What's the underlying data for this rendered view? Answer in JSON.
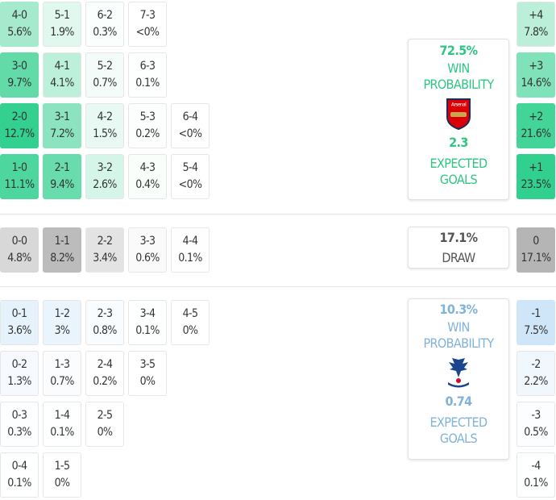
{
  "colors": {
    "home": "#2ecf8c",
    "draw": "#b5b5b5",
    "away": "#b9daf4"
  },
  "home_grid": [
    [
      {
        "score": "4-0",
        "pct": "5.6%"
      },
      {
        "score": "5-1",
        "pct": "1.9%"
      },
      {
        "score": "6-2",
        "pct": "0.3%"
      },
      {
        "score": "7-3",
        "pct": "<0%"
      }
    ],
    [
      {
        "score": "3-0",
        "pct": "9.7%"
      },
      {
        "score": "4-1",
        "pct": "4.1%"
      },
      {
        "score": "5-2",
        "pct": "0.7%"
      },
      {
        "score": "6-3",
        "pct": "0.1%"
      }
    ],
    [
      {
        "score": "2-0",
        "pct": "12.7%"
      },
      {
        "score": "3-1",
        "pct": "7.2%"
      },
      {
        "score": "4-2",
        "pct": "1.5%"
      },
      {
        "score": "5-3",
        "pct": "0.2%"
      },
      {
        "score": "6-4",
        "pct": "<0%"
      }
    ],
    [
      {
        "score": "1-0",
        "pct": "11.1%"
      },
      {
        "score": "2-1",
        "pct": "9.4%"
      },
      {
        "score": "3-2",
        "pct": "2.6%"
      },
      {
        "score": "4-3",
        "pct": "0.4%"
      },
      {
        "score": "5-4",
        "pct": "<0%"
      }
    ]
  ],
  "draw_grid": [
    [
      {
        "score": "0-0",
        "pct": "4.8%"
      },
      {
        "score": "1-1",
        "pct": "8.2%"
      },
      {
        "score": "2-2",
        "pct": "3.4%"
      },
      {
        "score": "3-3",
        "pct": "0.6%"
      },
      {
        "score": "4-4",
        "pct": "0.1%"
      }
    ]
  ],
  "away_grid": [
    [
      {
        "score": "0-1",
        "pct": "3.6%"
      },
      {
        "score": "1-2",
        "pct": "3%"
      },
      {
        "score": "2-3",
        "pct": "0.8%"
      },
      {
        "score": "3-4",
        "pct": "0.1%"
      },
      {
        "score": "4-5",
        "pct": "0%"
      }
    ],
    [
      {
        "score": "0-2",
        "pct": "1.3%"
      },
      {
        "score": "1-3",
        "pct": "0.7%"
      },
      {
        "score": "2-4",
        "pct": "0.2%"
      },
      {
        "score": "3-5",
        "pct": "0%"
      }
    ],
    [
      {
        "score": "0-3",
        "pct": "0.3%"
      },
      {
        "score": "1-4",
        "pct": "0.1%"
      },
      {
        "score": "2-5",
        "pct": "0%"
      }
    ],
    [
      {
        "score": "0-4",
        "pct": "0.1%"
      },
      {
        "score": "1-5",
        "pct": "0%"
      }
    ]
  ],
  "home_margins": [
    {
      "score": "+4",
      "pct": "7.8%"
    },
    {
      "score": "+3",
      "pct": "14.6%"
    },
    {
      "score": "+2",
      "pct": "21.6%"
    },
    {
      "score": "+1",
      "pct": "23.5%"
    }
  ],
  "draw_margins": [
    {
      "score": "0",
      "pct": "17.1%"
    }
  ],
  "away_margins": [
    {
      "score": "-1",
      "pct": "7.5%"
    },
    {
      "score": "-2",
      "pct": "2.2%"
    },
    {
      "score": "-3",
      "pct": "0.5%"
    },
    {
      "score": "-4",
      "pct": "0.1%"
    }
  ],
  "home_card": {
    "win_pct": "72.5%",
    "win_label_1": "WIN",
    "win_label_2": "PROBABILITY",
    "crest": "arsenal-crest",
    "xg": "2.3",
    "xg_label_1": "EXPECTED",
    "xg_label_2": "GOALS"
  },
  "draw_card": {
    "pct": "17.1%",
    "label": "DRAW"
  },
  "away_card": {
    "win_pct": "10.3%",
    "win_label_1": "WIN",
    "win_label_2": "PROBABILITY",
    "crest": "crystal-palace-crest",
    "xg": "0.74",
    "xg_label_1": "EXPECTED",
    "xg_label_2": "GOALS"
  }
}
